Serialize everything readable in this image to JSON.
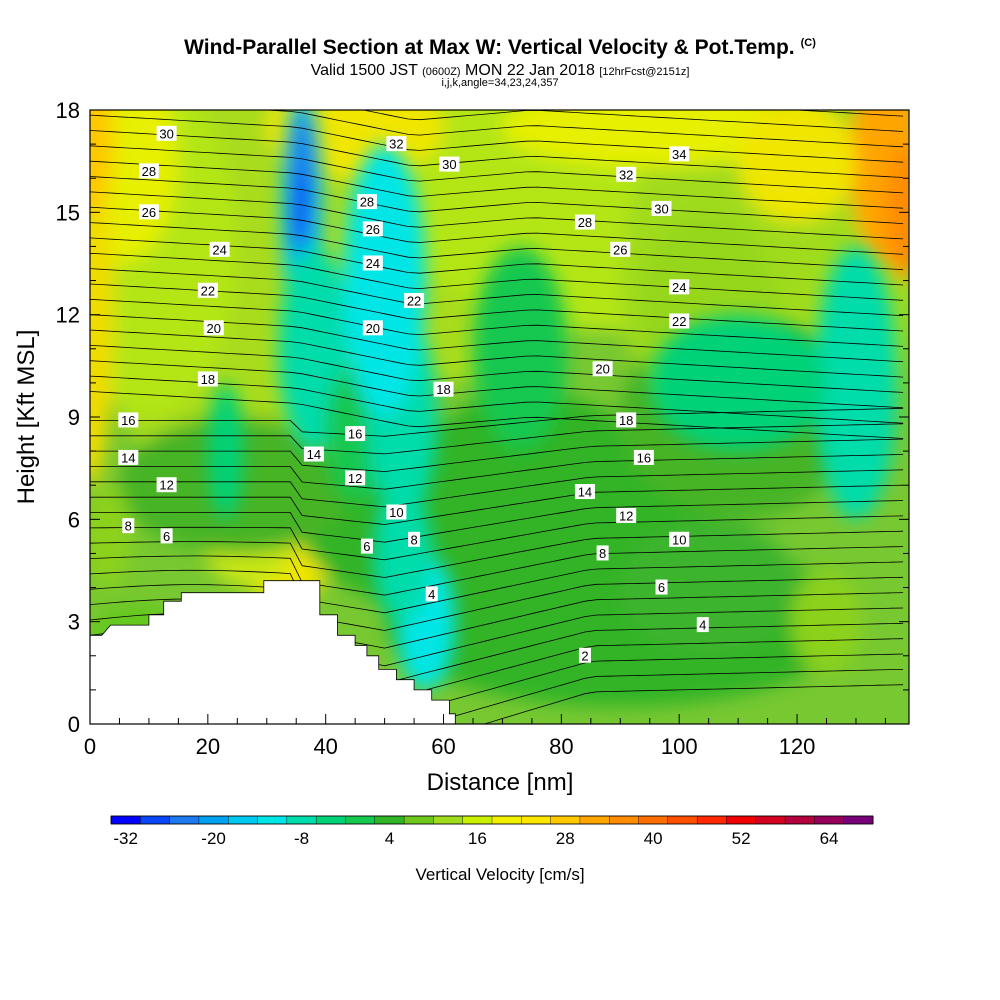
{
  "header": {
    "title": "Wind-Parallel Section at Max W: Vertical Velocity & Pot.Temp.",
    "copyright": "(C)",
    "valid_prefix": "Valid 1500 JST",
    "valid_zulu": "(0600Z)",
    "valid_date": "MON 22 Jan 2018",
    "forecast_info": "[12hrFcst@2151z]",
    "indices": "i,j,k,angle=34,23,24,357"
  },
  "chart_data": {
    "type": "heatmap",
    "xlabel": "Distance [nm]",
    "ylabel": "Height [Kft MSL]",
    "xlim": [
      0,
      139
    ],
    "ylim": [
      0,
      18
    ],
    "x_ticks": [
      0,
      20,
      40,
      60,
      80,
      100,
      120
    ],
    "y_ticks": [
      0,
      3,
      6,
      9,
      12,
      15,
      18
    ],
    "colorbar": {
      "title": "Vertical Velocity [cm/s]",
      "tick_labels": [
        "-32",
        "-20",
        "-8",
        "4",
        "16",
        "28",
        "40",
        "52",
        "64"
      ],
      "bins": [
        -32,
        -28,
        -24,
        -20,
        -16,
        -12,
        -8,
        -4,
        0,
        4,
        8,
        12,
        16,
        20,
        24,
        28,
        32,
        36,
        40,
        44,
        48,
        52,
        56,
        60,
        64,
        68,
        72
      ],
      "colors": [
        "#0000ff",
        "#0a46f5",
        "#1e78f0",
        "#00a0f0",
        "#00c8f0",
        "#00e6e6",
        "#00dcaa",
        "#00d278",
        "#14c850",
        "#32b428",
        "#6ec81e",
        "#a0dc1e",
        "#c8f000",
        "#f0f000",
        "#ffe600",
        "#ffc800",
        "#ffa500",
        "#ff8c00",
        "#ff6e00",
        "#ff5000",
        "#ff2800",
        "#f00000",
        "#d2001e",
        "#b4003c",
        "#96005a",
        "#780078"
      ]
    },
    "terrain": [
      [
        0,
        2.6
      ],
      [
        2,
        2.6
      ],
      [
        3.5,
        2.9
      ],
      [
        10,
        2.9
      ],
      [
        10,
        3.2
      ],
      [
        12.5,
        3.2
      ],
      [
        12.5,
        3.6
      ],
      [
        15.5,
        3.6
      ],
      [
        15.5,
        3.85
      ],
      [
        29.5,
        3.85
      ],
      [
        29.5,
        4.2
      ],
      [
        39,
        4.2
      ],
      [
        39,
        3.2
      ],
      [
        42,
        3.2
      ],
      [
        42,
        2.6
      ],
      [
        45,
        2.6
      ],
      [
        45,
        2.3
      ],
      [
        47,
        2.3
      ],
      [
        47,
        2.0
      ],
      [
        49,
        2.0
      ],
      [
        49,
        1.6
      ],
      [
        52,
        1.6
      ],
      [
        52,
        1.3
      ],
      [
        55,
        1.3
      ],
      [
        55,
        1.0
      ],
      [
        58,
        1.0
      ],
      [
        58,
        0.7
      ],
      [
        61,
        0.7
      ],
      [
        61,
        0.3
      ],
      [
        62,
        0.3
      ],
      [
        62,
        0
      ]
    ],
    "theta_contour_labels": [
      {
        "v": "30",
        "x": 13,
        "y": 17.3
      },
      {
        "v": "28",
        "x": 10,
        "y": 16.2
      },
      {
        "v": "26",
        "x": 10,
        "y": 15.0
      },
      {
        "v": "24",
        "x": 22,
        "y": 13.9
      },
      {
        "v": "22",
        "x": 20,
        "y": 12.7
      },
      {
        "v": "20",
        "x": 21,
        "y": 11.6
      },
      {
        "v": "18",
        "x": 20,
        "y": 10.1
      },
      {
        "v": "16",
        "x": 6.5,
        "y": 8.9
      },
      {
        "v": "14",
        "x": 6.5,
        "y": 7.8
      },
      {
        "v": "12",
        "x": 13,
        "y": 7.0
      },
      {
        "v": "8",
        "x": 6.5,
        "y": 5.8
      },
      {
        "v": "6",
        "x": 13,
        "y": 5.5
      },
      {
        "v": "32",
        "x": 52,
        "y": 17.0
      },
      {
        "v": "30",
        "x": 61,
        "y": 16.4
      },
      {
        "v": "28",
        "x": 47,
        "y": 15.3
      },
      {
        "v": "26",
        "x": 48,
        "y": 14.5
      },
      {
        "v": "24",
        "x": 48,
        "y": 13.5
      },
      {
        "v": "22",
        "x": 55,
        "y": 12.4
      },
      {
        "v": "20",
        "x": 48,
        "y": 11.6
      },
      {
        "v": "18",
        "x": 60,
        "y": 9.8
      },
      {
        "v": "16",
        "x": 45,
        "y": 8.5
      },
      {
        "v": "14",
        "x": 38,
        "y": 7.9
      },
      {
        "v": "12",
        "x": 45,
        "y": 7.2
      },
      {
        "v": "10",
        "x": 52,
        "y": 6.2
      },
      {
        "v": "8",
        "x": 55,
        "y": 5.4
      },
      {
        "v": "6",
        "x": 47,
        "y": 5.2
      },
      {
        "v": "4",
        "x": 58,
        "y": 3.8
      },
      {
        "v": "2",
        "x": 84,
        "y": 2.0
      },
      {
        "v": "34",
        "x": 100,
        "y": 16.7
      },
      {
        "v": "32",
        "x": 91,
        "y": 16.1
      },
      {
        "v": "30",
        "x": 97,
        "y": 15.1
      },
      {
        "v": "28",
        "x": 84,
        "y": 14.7
      },
      {
        "v": "26",
        "x": 90,
        "y": 13.9
      },
      {
        "v": "24",
        "x": 100,
        "y": 12.8
      },
      {
        "v": "22",
        "x": 100,
        "y": 11.8
      },
      {
        "v": "20",
        "x": 87,
        "y": 10.4
      },
      {
        "v": "18",
        "x": 91,
        "y": 8.9
      },
      {
        "v": "16",
        "x": 94,
        "y": 7.8
      },
      {
        "v": "14",
        "x": 84,
        "y": 6.8
      },
      {
        "v": "12",
        "x": 91,
        "y": 6.1
      },
      {
        "v": "10",
        "x": 100,
        "y": 5.4
      },
      {
        "v": "8",
        "x": 87,
        "y": 5.0
      },
      {
        "v": "6",
        "x": 97,
        "y": 4.0
      },
      {
        "v": "4",
        "x": 104,
        "y": 2.9
      }
    ]
  }
}
